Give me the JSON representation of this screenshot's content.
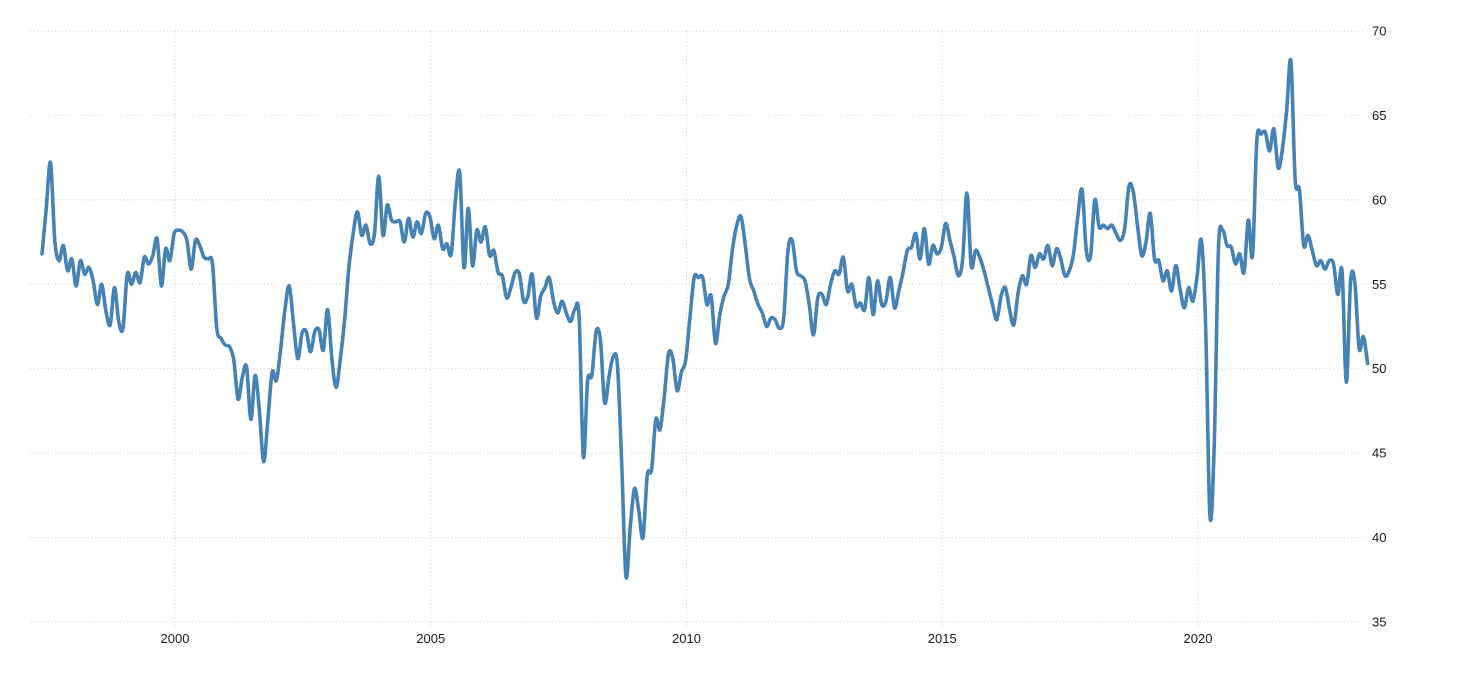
{
  "chart": {
    "background": "#ffffff",
    "line_color": "#4682b4",
    "grid_color": "#c9c9c9",
    "label_color": "#1a1a1a",
    "x_tick_labels": [
      "2000",
      "2005",
      "2010",
      "2015",
      "2020"
    ],
    "y_tick_labels": [
      "35",
      "40",
      "45",
      "50",
      "55",
      "60",
      "65",
      "70"
    ]
  },
  "chart_data": {
    "type": "line",
    "title": "",
    "xlabel": "",
    "ylabel": "",
    "legend": "none",
    "grid": "dotted",
    "frequency": "monthly",
    "x_start": "1997-06",
    "x_end": "2023-05",
    "x_ticks": [
      2000,
      2005,
      2010,
      2015,
      2020
    ],
    "y_ticks": [
      35,
      40,
      45,
      50,
      55,
      60,
      65,
      70
    ],
    "ylim": [
      35,
      70
    ],
    "series": [
      {
        "name": "series-1",
        "values": [
          56.8,
          59.5,
          62.2,
          57.6,
          56.4,
          57.3,
          55.8,
          56.5,
          54.9,
          56.4,
          55.6,
          56.0,
          55.2,
          53.8,
          55.0,
          53.4,
          52.6,
          54.8,
          52.8,
          52.4,
          55.6,
          55.0,
          55.7,
          55.1,
          56.6,
          56.2,
          56.7,
          57.7,
          54.9,
          57.1,
          56.4,
          58.0,
          58.2,
          58.1,
          57.6,
          55.9,
          57.6,
          57.3,
          56.6,
          56.5,
          56.2,
          52.4,
          51.8,
          51.4,
          51.3,
          50.5,
          48.2,
          49.5,
          50.1,
          47.0,
          49.6,
          47.5,
          44.5,
          47.0,
          49.8,
          49.3,
          51.2,
          53.5,
          54.9,
          52.7,
          50.6,
          52.1,
          52.2,
          51.0,
          52.2,
          52.3,
          51.1,
          53.5,
          50.6,
          48.9,
          50.6,
          52.9,
          56.0,
          58.0,
          59.3,
          57.9,
          58.5,
          57.4,
          58.0,
          61.4,
          57.9,
          59.7,
          58.8,
          58.7,
          58.7,
          57.5,
          58.9,
          57.8,
          58.7,
          58.0,
          59.2,
          59.0,
          57.7,
          58.5,
          57.1,
          57.4,
          56.8,
          60.0,
          61.6,
          56.0,
          59.5,
          56.1,
          58.2,
          57.5,
          58.4,
          56.7,
          57.0,
          55.7,
          55.5,
          54.2,
          54.8,
          55.7,
          55.6,
          54.0,
          54.3,
          55.6,
          53.0,
          54.3,
          54.8,
          55.4,
          54.0,
          53.3,
          54.0,
          53.3,
          52.8,
          53.5,
          53.1,
          44.8,
          49.3,
          49.6,
          52.2,
          51.7,
          48.0,
          49.5,
          50.7,
          50.2,
          44.4,
          37.7,
          40.6,
          42.9,
          41.6,
          40.0,
          43.7,
          44.0,
          47.0,
          46.4,
          48.4,
          50.9,
          50.6,
          48.7,
          49.8,
          50.5,
          53.0,
          55.4,
          55.4,
          55.4,
          53.8,
          54.3,
          51.5,
          53.2,
          54.3,
          55.0,
          57.1,
          58.5,
          59.0,
          57.3,
          55.3,
          54.6,
          53.8,
          53.3,
          52.5,
          53.0,
          52.9,
          52.4,
          53.0,
          57.0,
          57.6,
          55.8,
          55.5,
          55.2,
          53.8,
          52.0,
          54.2,
          54.4,
          53.8,
          55.0,
          55.8,
          55.6,
          56.6,
          54.6,
          55.0,
          53.7,
          53.9,
          53.5,
          55.4,
          53.2,
          55.2,
          53.8,
          54.0,
          55.4,
          53.6,
          54.6,
          55.7,
          57.0,
          57.2,
          58.0,
          56.5,
          58.3,
          56.2,
          57.3,
          56.8,
          57.2,
          58.6,
          57.6,
          56.6,
          55.5,
          56.5,
          60.4,
          56.1,
          57.0,
          56.6,
          55.8,
          54.8,
          53.8,
          52.9,
          54.3,
          54.8,
          53.5,
          52.6,
          54.5,
          55.5,
          55.0,
          56.7,
          56.0,
          56.8,
          56.5,
          57.3,
          56.1,
          57.1,
          56.5,
          55.5,
          55.8,
          56.8,
          59.0,
          60.6,
          57.0,
          56.7,
          60.0,
          58.4,
          58.5,
          58.3,
          58.5,
          58.0,
          57.6,
          58.3,
          60.8,
          60.5,
          58.5,
          56.7,
          57.5,
          59.2,
          56.5,
          56.4,
          55.2,
          55.8,
          54.6,
          56.1,
          54.7,
          53.6,
          54.8,
          54.0,
          55.5,
          57.6,
          52.5,
          41.3,
          45.4,
          57.1,
          58.2,
          57.3,
          57.2,
          56.2,
          56.8,
          55.7,
          58.8,
          56.7,
          63.5,
          63.9,
          64.0,
          62.9,
          64.2,
          61.9,
          63.0,
          65.3,
          68.2,
          61.2,
          60.6,
          57.3,
          57.9,
          57.0,
          56.1,
          56.4,
          55.9,
          56.4,
          56.2,
          54.4,
          55.8,
          49.2,
          55.2,
          55.1,
          51.2,
          51.9,
          50.3
        ]
      }
    ]
  }
}
